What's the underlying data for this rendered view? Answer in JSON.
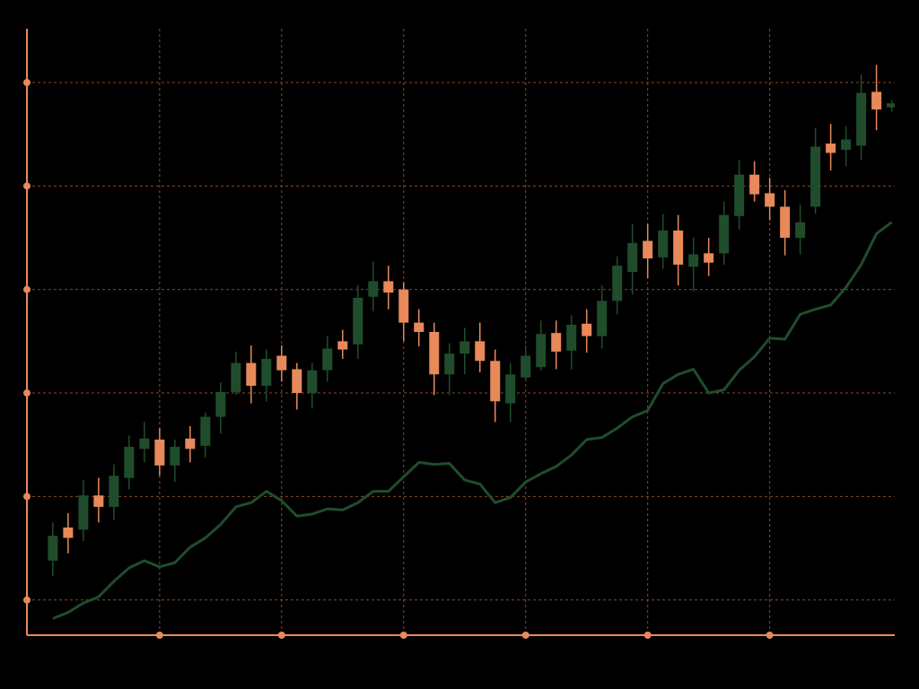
{
  "chart_data": {
    "type": "candlestick",
    "x": [
      0,
      1,
      2,
      3,
      4,
      5,
      6,
      7,
      8,
      9,
      10,
      11,
      12,
      13,
      14,
      15,
      16,
      17,
      18,
      19,
      20,
      21,
      22,
      23,
      24,
      25,
      26,
      27,
      28,
      29,
      30,
      31,
      32,
      33,
      34,
      35,
      36,
      37,
      38,
      39,
      40,
      41,
      42,
      43,
      44,
      45,
      46,
      47,
      48,
      49,
      50,
      51,
      52,
      53,
      54,
      55
    ],
    "open": [
      13.8,
      17.0,
      16.8,
      20.1,
      19.0,
      21.8,
      24.6,
      25.5,
      23.0,
      25.6,
      24.9,
      27.7,
      30.1,
      32.9,
      30.7,
      33.6,
      32.3,
      30.0,
      32.2,
      35.0,
      34.7,
      39.3,
      40.8,
      40.0,
      36.8,
      35.9,
      31.8,
      33.8,
      35.0,
      33.1,
      29.0,
      31.5,
      32.5,
      35.8,
      34.1,
      36.7,
      35.5,
      38.9,
      41.7,
      44.7,
      43.1,
      45.7,
      42.2,
      43.5,
      43.5,
      47.1,
      51.1,
      49.3,
      48.0,
      45.0,
      48.0,
      54.1,
      53.5,
      53.9,
      59.1,
      57.6
    ],
    "high": [
      17.5,
      18.4,
      21.6,
      21.8,
      23.1,
      25.9,
      27.2,
      26.6,
      25.5,
      26.8,
      28.1,
      31.0,
      34.0,
      34.6,
      34.2,
      34.6,
      32.9,
      32.9,
      35.5,
      36.1,
      40.4,
      42.7,
      42.3,
      40.7,
      38.1,
      36.8,
      34.8,
      36.3,
      36.8,
      34.2,
      32.9,
      34.6,
      37.0,
      37.0,
      37.5,
      38.1,
      40.4,
      43.2,
      46.3,
      46.3,
      47.3,
      47.2,
      45.0,
      45.0,
      48.5,
      52.5,
      52.4,
      50.8,
      49.6,
      48.2,
      55.6,
      56.0,
      55.8,
      60.8,
      61.7,
      58.3
    ],
    "low": [
      12.3,
      14.5,
      15.7,
      17.5,
      17.7,
      20.7,
      23.3,
      22.0,
      21.4,
      23.3,
      23.8,
      26.1,
      29.8,
      29.0,
      29.2,
      31.1,
      28.4,
      28.5,
      31.1,
      33.3,
      33.3,
      37.9,
      38.1,
      35.0,
      34.5,
      29.8,
      29.8,
      31.8,
      32.0,
      27.2,
      27.2,
      31.1,
      32.2,
      32.3,
      32.3,
      33.9,
      34.3,
      37.6,
      39.5,
      41.1,
      42.0,
      40.4,
      39.8,
      41.3,
      42.4,
      45.8,
      48.5,
      46.7,
      43.3,
      43.4,
      47.3,
      51.5,
      51.9,
      52.5,
      55.4,
      57.2
    ],
    "close": [
      16.2,
      16.0,
      20.1,
      19.0,
      22.0,
      24.8,
      25.6,
      23.0,
      24.8,
      24.6,
      27.7,
      30.1,
      32.9,
      30.7,
      33.3,
      32.2,
      30.0,
      32.2,
      34.3,
      34.2,
      39.2,
      40.8,
      39.7,
      36.8,
      35.9,
      31.8,
      33.8,
      35.0,
      33.1,
      29.2,
      31.8,
      33.6,
      35.7,
      34.0,
      36.6,
      35.5,
      38.9,
      42.3,
      44.5,
      43.0,
      45.7,
      42.4,
      43.4,
      42.6,
      47.2,
      51.1,
      49.2,
      48.0,
      45.0,
      46.5,
      53.8,
      53.2,
      54.5,
      59.0,
      57.4,
      58.0
    ],
    "up_color": "#1f4d2c",
    "down_color": "#e8895a",
    "series": [
      {
        "type": "line",
        "color": "#1f4d2c",
        "values": [
          8.2,
          8.8,
          9.7,
          10.3,
          11.8,
          13.1,
          13.8,
          13.2,
          13.6,
          15.1,
          16.0,
          17.3,
          19.0,
          19.4,
          20.5,
          19.6,
          18.1,
          18.3,
          18.8,
          18.7,
          19.4,
          20.5,
          20.5,
          21.9,
          23.3,
          23.1,
          23.2,
          21.6,
          21.2,
          19.4,
          19.9,
          21.4,
          22.2,
          22.9,
          24.0,
          25.5,
          25.7,
          26.6,
          27.7,
          28.3,
          30.9,
          31.8,
          32.3,
          30.0,
          30.3,
          32.2,
          33.5,
          35.3,
          35.2,
          37.6,
          38.1,
          38.5,
          40.2,
          42.4,
          45.4,
          46.5
        ]
      }
    ],
    "xlim": [
      -1.7,
      55.2
    ],
    "ylim": [
      6.6,
      65.2
    ],
    "xticks": [
      7,
      15,
      23,
      31,
      39,
      47
    ],
    "yticks": [
      10,
      20,
      30,
      40,
      50,
      60
    ],
    "grid": true,
    "axis_color": "#e8895a",
    "grid_color": "#8a4a2a"
  }
}
